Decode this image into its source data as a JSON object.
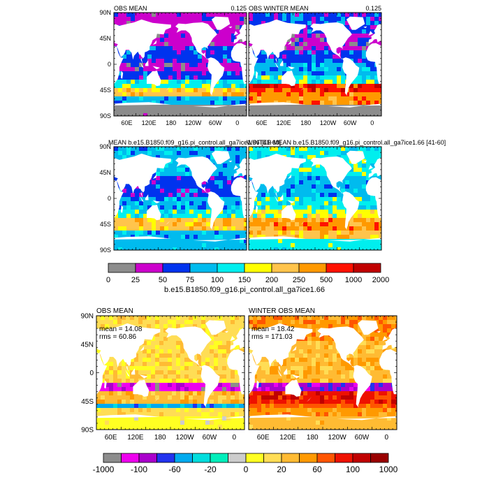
{
  "palette1": [
    "#8c8c8c",
    "#cc00cc",
    "#0033ee",
    "#00bbee",
    "#00eeee",
    "#ffff00",
    "#ffc44c",
    "#ff9900",
    "#ff1100",
    "#c00000"
  ],
  "palette2": [
    "#8c8c8c",
    "#ee00ee",
    "#aa00cc",
    "#2233ee",
    "#00aaee",
    "#00dddd",
    "#00eebb",
    "#cccccc",
    "#ffff22",
    "#ffdd55",
    "#ffbb33",
    "#ff9900",
    "#ff5500",
    "#ee1100",
    "#c00000",
    "#990000"
  ],
  "land_color": "#ffffff",
  "panels": [
    {
      "id": "p1",
      "title_left": "OBS MEAN",
      "title_right": "0.125",
      "show_lon_labels": true
    },
    {
      "id": "p2",
      "title_left": "OBS WINTER MEAN",
      "title_right": "0.125",
      "show_lon_labels": true
    },
    {
      "id": "p3",
      "title_left": "MEAN b.e15.B1850.f09_g16.pi_control.all_ga7ice1.66 [41-60]",
      "title_right": "",
      "show_lon_labels": false
    },
    {
      "id": "p4",
      "title_left": "WINTER MEAN b.e15.B1850.f09_g16.pi_control.all_ga7ice1.66 [41-60]",
      "title_right": "",
      "show_lon_labels": false
    },
    {
      "id": "p5",
      "title_left": "OBS MEAN",
      "title_right": "",
      "mean_text": "mean = 14.08",
      "rms_text": "rms = 60.86",
      "show_lon_labels": true
    },
    {
      "id": "p6",
      "title_left": "WINTER OBS MEAN",
      "title_right": "",
      "mean_text": "mean = 18.42",
      "rms_text": "rms = 171.03",
      "show_lon_labels": true
    }
  ],
  "lat_ticks": [
    "90N",
    "45N",
    "0",
    "45S",
    "90S"
  ],
  "lon_ticks": [
    "60E",
    "120E",
    "180",
    "120W",
    "60W",
    "0"
  ],
  "colorbar1": {
    "labels": [
      "0",
      "25",
      "50",
      "75",
      "100",
      "150",
      "200",
      "250",
      "500",
      "1000",
      "2000"
    ],
    "caption": "b.e15.B1850.f09_g16.pi_control.all_ga7ice1.66"
  },
  "colorbar2": {
    "labels": [
      "-1000",
      "-100",
      "-60",
      "-20",
      "0",
      "20",
      "60",
      "100",
      "1000"
    ]
  },
  "chart_data": [
    {
      "type": "heatmap",
      "title": "OBS MEAN",
      "note": "0.125",
      "levels": [
        0,
        25,
        50,
        75,
        100,
        150,
        200,
        250,
        500,
        1000,
        2000
      ]
    },
    {
      "type": "heatmap",
      "title": "OBS WINTER MEAN",
      "note": "0.125",
      "levels": [
        0,
        25,
        50,
        75,
        100,
        150,
        200,
        250,
        500,
        1000,
        2000
      ]
    },
    {
      "type": "heatmap",
      "title": "MEAN b.e15.B1850.f09_g16.pi_control.all_ga7ice1.66 [41-60]",
      "levels": [
        0,
        25,
        50,
        75,
        100,
        150,
        200,
        250,
        500,
        1000,
        2000
      ]
    },
    {
      "type": "heatmap",
      "title": "WINTER MEAN b.e15.B1850.f09_g16.pi_control.all_ga7ice1.66 [41-60]",
      "levels": [
        0,
        25,
        50,
        75,
        100,
        150,
        200,
        250,
        500,
        1000,
        2000
      ]
    },
    {
      "type": "heatmap",
      "title": "OBS MEAN",
      "mean": 14.08,
      "rms": 60.86
    },
    {
      "type": "heatmap",
      "title": "WINTER OBS MEAN",
      "mean": 18.42,
      "rms": 171.03
    }
  ]
}
